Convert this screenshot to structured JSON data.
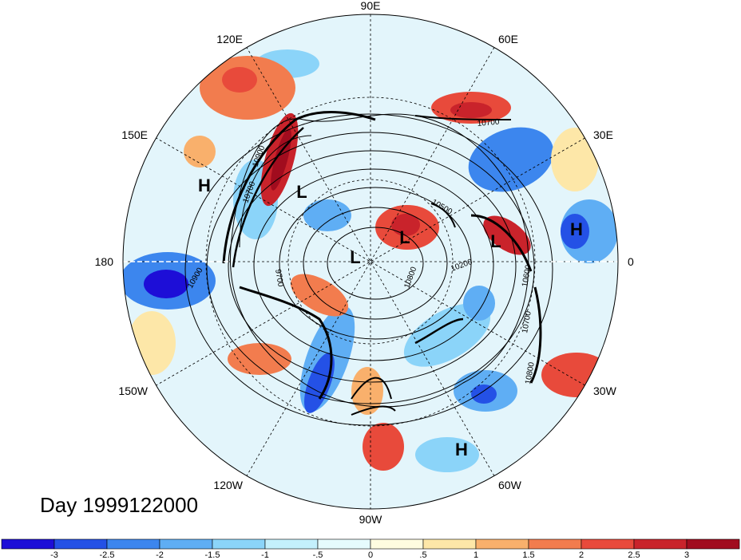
{
  "figure": {
    "date_label": "Day 1999122000"
  },
  "longitude_labels": [
    {
      "id": "lon-90e",
      "text": "90E"
    },
    {
      "id": "lon-60e",
      "text": "60E"
    },
    {
      "id": "lon-30e",
      "text": "30E"
    },
    {
      "id": "lon-0",
      "text": "0"
    },
    {
      "id": "lon-30w",
      "text": "30W"
    },
    {
      "id": "lon-60w",
      "text": "60W"
    },
    {
      "id": "lon-90w",
      "text": "90W"
    },
    {
      "id": "lon-120w",
      "text": "120W"
    },
    {
      "id": "lon-150w",
      "text": "150W"
    },
    {
      "id": "lon-180",
      "text": "180"
    },
    {
      "id": "lon-150e",
      "text": "150E"
    },
    {
      "id": "lon-120e",
      "text": "120E"
    }
  ],
  "pressure_centers": [
    {
      "id": "h-pacific-west",
      "text": "H"
    },
    {
      "id": "h-europe",
      "text": "H"
    },
    {
      "id": "h-atlantic",
      "text": "H"
    },
    {
      "id": "l-siberia",
      "text": "L"
    },
    {
      "id": "l-pole",
      "text": "L"
    },
    {
      "id": "l-kara",
      "text": "L"
    },
    {
      "id": "l-scandinavia",
      "text": "L"
    }
  ],
  "contour_labels": [
    {
      "id": "c-10700-ural",
      "text": "10700"
    },
    {
      "id": "c-10900-asia",
      "text": "10900"
    },
    {
      "id": "c-10700-asia",
      "text": "10700"
    },
    {
      "id": "c-10900-pacific",
      "text": "10900"
    },
    {
      "id": "c-9700",
      "text": "9700"
    },
    {
      "id": "c-10800-canada",
      "text": "10800"
    },
    {
      "id": "c-10500-kara",
      "text": "10500"
    },
    {
      "id": "c-10600-europe",
      "text": "10600"
    },
    {
      "id": "c-10700-atlantic",
      "text": "10700"
    },
    {
      "id": "c-10800-atlantic",
      "text": "10800"
    },
    {
      "id": "c-10200-greenland",
      "text": "10200"
    }
  ],
  "colorbar": {
    "colors": [
      "#1d0ed7",
      "#2451e6",
      "#3c86ee",
      "#5faef4",
      "#8bd4f9",
      "#c4f0fc",
      "#e6fbfd",
      "#fefce0",
      "#fde7a8",
      "#f9b06c",
      "#f27c4e",
      "#e84a3b",
      "#c9232b",
      "#a10c1e"
    ],
    "ticks": [
      "-3",
      "-2.5",
      "-2",
      "-1.5",
      "-1",
      "-.5",
      "0",
      ".5",
      "1",
      "1.5",
      "2",
      "2.5",
      "3"
    ]
  }
}
